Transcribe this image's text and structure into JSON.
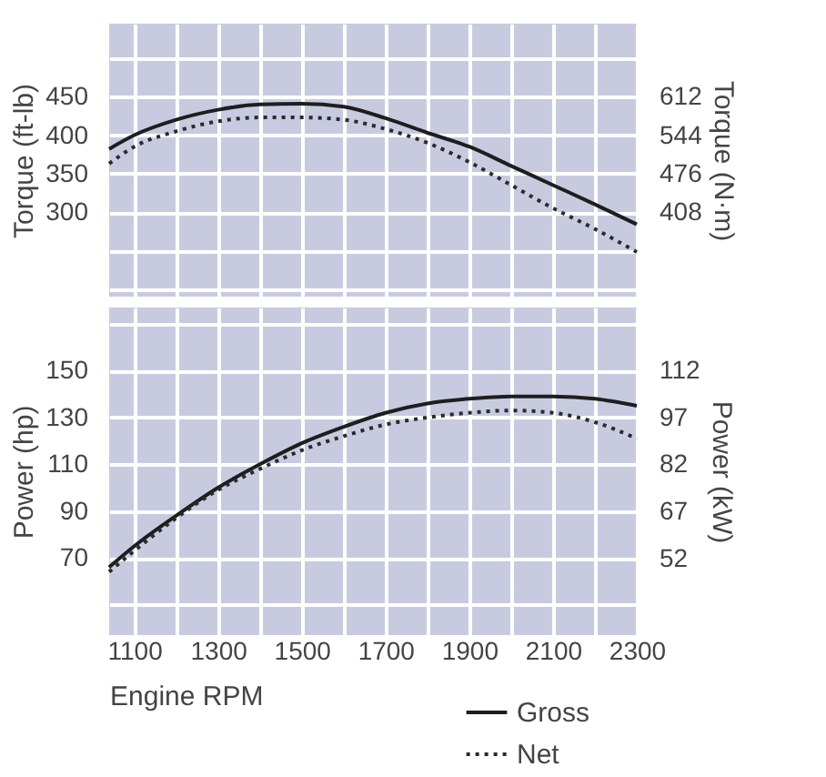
{
  "chart_data": [
    {
      "type": "line",
      "ylabel": "Torque (ft-lb)",
      "y2label": "Torque (N·m)",
      "x": [
        1040,
        1100,
        1200,
        1300,
        1400,
        1500,
        1600,
        1700,
        1800,
        1900,
        2000,
        2100,
        2200,
        2300
      ],
      "xlim": [
        1040,
        2300
      ],
      "xticks": [
        {
          "value": 1100,
          "label": null
        },
        {
          "value": 1200,
          "label": null
        },
        {
          "value": 1300,
          "label": null
        },
        {
          "value": 1400,
          "label": null
        },
        {
          "value": 1500,
          "label": null
        },
        {
          "value": 1600,
          "label": null
        },
        {
          "value": 1700,
          "label": null
        },
        {
          "value": 1800,
          "label": null
        },
        {
          "value": 1900,
          "label": null
        },
        {
          "value": 2000,
          "label": null
        },
        {
          "value": 2100,
          "label": null
        },
        {
          "value": 2200,
          "label": null
        },
        {
          "value": 2300,
          "label": null
        }
      ],
      "ylim": [
        190,
        545
      ],
      "yticks": [
        {
          "value": 200,
          "label": null
        },
        {
          "value": 250,
          "label": null
        },
        300,
        350,
        400,
        450,
        {
          "value": 500,
          "label": null
        }
      ],
      "y2lim": [
        258.4,
        741.2
      ],
      "y2ticks": [
        408,
        476,
        544,
        612
      ],
      "tick_labels": "y",
      "grid": true,
      "legend": false,
      "series": [
        {
          "color": "#1e1e1e",
          "line_style": "solid",
          "values": [
            382,
            400,
            420,
            433,
            440,
            441,
            437,
            422,
            403,
            385,
            360,
            335,
            310,
            284
          ]
        },
        {
          "color": "#2a2a2a",
          "line_style": "dotted",
          "values": [
            363,
            385,
            405,
            418,
            423,
            423,
            420,
            408,
            390,
            365,
            335,
            305,
            278,
            248
          ]
        }
      ]
    },
    {
      "type": "line",
      "xlabel": "Engine RPM",
      "ylabel": "Power (hp)",
      "y2label": "Power (kW)",
      "x": [
        1040,
        1100,
        1200,
        1300,
        1400,
        1500,
        1600,
        1700,
        1800,
        1900,
        2000,
        2100,
        2200,
        2300
      ],
      "xlim": [
        1040,
        2300
      ],
      "xticks": [
        1100,
        {
          "value": 1200,
          "label": null
        },
        1300,
        {
          "value": 1400,
          "label": null
        },
        1500,
        {
          "value": 1600,
          "label": null
        },
        1700,
        {
          "value": 1800,
          "label": null
        },
        1900,
        {
          "value": 2000,
          "label": null
        },
        2100,
        {
          "value": 2200,
          "label": null
        },
        2300
      ],
      "ylim": [
        37,
        177
      ],
      "yticks": [
        {
          "value": 50,
          "label": null
        },
        70,
        90,
        110,
        130,
        150,
        {
          "value": 170,
          "label": null
        }
      ],
      "y2lim": [
        27.6,
        132
      ],
      "y2ticks": [
        52,
        67,
        82,
        97,
        112
      ],
      "grid": true,
      "legend": "bottom right",
      "series": [
        {
          "name": "Gross",
          "color": "#1e1e1e",
          "line_style": "solid",
          "values": [
            66,
            75,
            88,
            100,
            110,
            119,
            126,
            132,
            136,
            138,
            139,
            139,
            138,
            135
          ]
        },
        {
          "name": "Net",
          "color": "#2a2a2a",
          "line_style": "dotted",
          "values": [
            64,
            73,
            87,
            99,
            108,
            116,
            122,
            127,
            130,
            132,
            133,
            132,
            128,
            121
          ]
        }
      ]
    }
  ]
}
